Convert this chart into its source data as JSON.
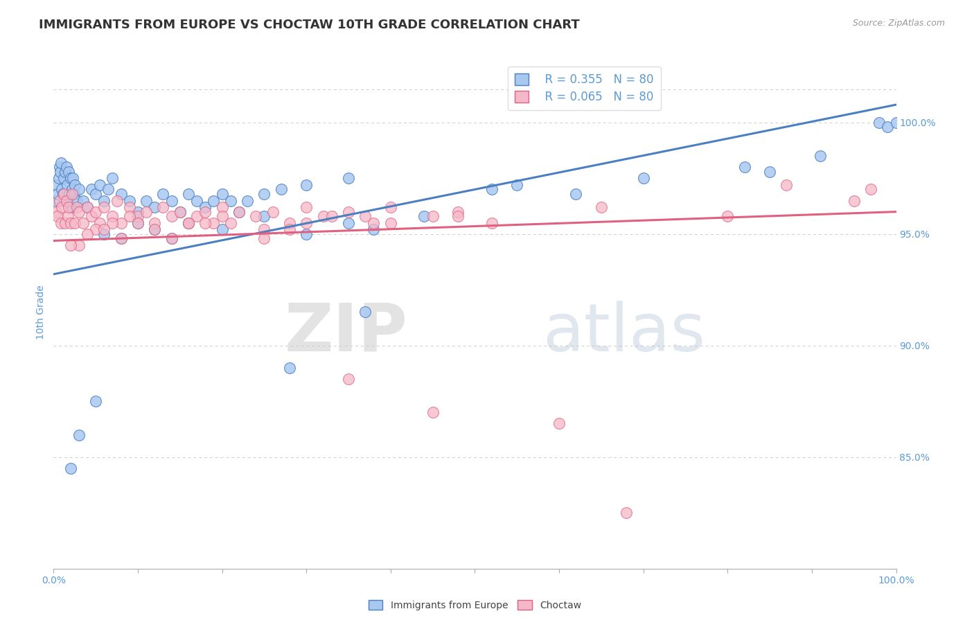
{
  "title": "IMMIGRANTS FROM EUROPE VS CHOCTAW 10TH GRADE CORRELATION CHART",
  "source": "Source: ZipAtlas.com",
  "ylabel": "10th Grade",
  "watermark": "ZIPatlas",
  "legend_label_1": "Immigrants from Europe",
  "legend_label_2": "Choctaw",
  "R1": 0.355,
  "N1": 80,
  "R2": 0.065,
  "N2": 80,
  "color1": "#A8C8F0",
  "color2": "#F5B8C8",
  "line_color1": "#4A7FC1",
  "line_color2": "#E06080",
  "xmin": 0.0,
  "xmax": 100.0,
  "ymin": 80.0,
  "ymax": 103.0,
  "yticks": [
    85.0,
    90.0,
    95.0,
    100.0
  ],
  "blue_line_x0": 0.0,
  "blue_line_x1": 100.0,
  "blue_line_y0": 93.2,
  "blue_line_y1": 100.8,
  "pink_line_x0": 0.0,
  "pink_line_x1": 100.0,
  "pink_line_y0": 94.7,
  "pink_line_y1": 96.0,
  "blue_x": [
    0.3,
    0.4,
    0.5,
    0.6,
    0.7,
    0.8,
    0.9,
    1.0,
    1.1,
    1.2,
    1.3,
    1.4,
    1.5,
    1.6,
    1.7,
    1.8,
    1.9,
    2.0,
    2.1,
    2.2,
    2.3,
    2.4,
    2.5,
    2.8,
    3.0,
    3.5,
    4.0,
    4.5,
    5.0,
    5.5,
    6.0,
    6.5,
    7.0,
    8.0,
    9.0,
    10.0,
    11.0,
    12.0,
    13.0,
    14.0,
    15.0,
    16.0,
    17.0,
    18.0,
    19.0,
    20.0,
    21.0,
    22.0,
    23.0,
    25.0,
    27.0,
    30.0,
    35.0,
    55.0,
    62.0,
    70.0,
    82.0,
    85.0,
    91.0,
    98.0,
    99.0,
    100.0,
    6.0,
    8.0,
    10.0,
    12.0,
    14.0,
    16.0,
    20.0,
    25.0,
    30.0,
    35.0,
    38.0,
    44.0,
    52.0,
    37.0,
    28.0,
    5.0,
    3.0,
    2.0
  ],
  "blue_y": [
    96.5,
    97.2,
    96.8,
    97.5,
    98.0,
    97.8,
    98.2,
    97.0,
    96.8,
    97.5,
    96.5,
    97.8,
    98.0,
    97.2,
    96.5,
    97.8,
    96.8,
    97.5,
    96.2,
    97.0,
    97.5,
    96.8,
    97.2,
    96.5,
    97.0,
    96.5,
    96.2,
    97.0,
    96.8,
    97.2,
    96.5,
    97.0,
    97.5,
    96.8,
    96.5,
    96.0,
    96.5,
    96.2,
    96.8,
    96.5,
    96.0,
    96.8,
    96.5,
    96.2,
    96.5,
    96.8,
    96.5,
    96.0,
    96.5,
    96.8,
    97.0,
    97.2,
    97.5,
    97.2,
    96.8,
    97.5,
    98.0,
    97.8,
    98.5,
    100.0,
    99.8,
    100.0,
    95.0,
    94.8,
    95.5,
    95.2,
    94.8,
    95.5,
    95.2,
    95.8,
    95.0,
    95.5,
    95.2,
    95.8,
    97.0,
    91.5,
    89.0,
    87.5,
    86.0,
    84.5
  ],
  "pink_x": [
    0.3,
    0.5,
    0.7,
    0.9,
    1.0,
    1.2,
    1.4,
    1.5,
    1.7,
    1.8,
    2.0,
    2.2,
    2.5,
    2.8,
    3.0,
    3.5,
    4.0,
    4.5,
    5.0,
    5.5,
    6.0,
    7.0,
    7.5,
    8.0,
    9.0,
    10.0,
    11.0,
    12.0,
    13.0,
    14.0,
    15.0,
    16.0,
    17.0,
    18.0,
    19.0,
    20.0,
    21.0,
    22.0,
    24.0,
    26.0,
    28.0,
    30.0,
    32.0,
    35.0,
    38.0,
    40.0,
    45.0,
    48.0,
    52.0,
    65.0,
    80.0,
    87.0,
    95.0,
    97.0,
    5.0,
    7.0,
    9.0,
    12.0,
    16.0,
    20.0,
    25.0,
    30.0,
    33.0,
    40.0,
    37.0,
    28.0,
    48.0,
    8.0,
    3.0,
    4.0,
    2.0,
    6.0,
    10.0,
    14.0,
    18.0,
    25.0,
    35.0,
    45.0,
    60.0,
    68.0
  ],
  "pink_y": [
    96.0,
    95.8,
    96.5,
    95.5,
    96.2,
    96.8,
    95.5,
    96.5,
    95.8,
    96.2,
    95.5,
    96.8,
    95.5,
    96.2,
    96.0,
    95.5,
    96.2,
    95.8,
    96.0,
    95.5,
    96.2,
    95.8,
    96.5,
    95.5,
    96.2,
    95.8,
    96.0,
    95.5,
    96.2,
    95.8,
    96.0,
    95.5,
    95.8,
    96.0,
    95.5,
    96.2,
    95.5,
    96.0,
    95.8,
    96.0,
    95.5,
    96.2,
    95.8,
    96.0,
    95.5,
    96.2,
    95.8,
    96.0,
    95.5,
    96.2,
    95.8,
    97.2,
    96.5,
    97.0,
    95.2,
    95.5,
    95.8,
    95.2,
    95.5,
    95.8,
    95.2,
    95.5,
    95.8,
    95.5,
    95.8,
    95.2,
    95.8,
    94.8,
    94.5,
    95.0,
    94.5,
    95.2,
    95.5,
    94.8,
    95.5,
    94.8,
    88.5,
    87.0,
    86.5,
    82.5
  ],
  "grid_color": "#CCCCCC",
  "title_color": "#333333",
  "axis_color": "#5B9BD5",
  "background_color": "#FFFFFF",
  "title_fontsize": 13,
  "label_fontsize": 10,
  "tick_fontsize": 10,
  "legend_fontsize": 12
}
